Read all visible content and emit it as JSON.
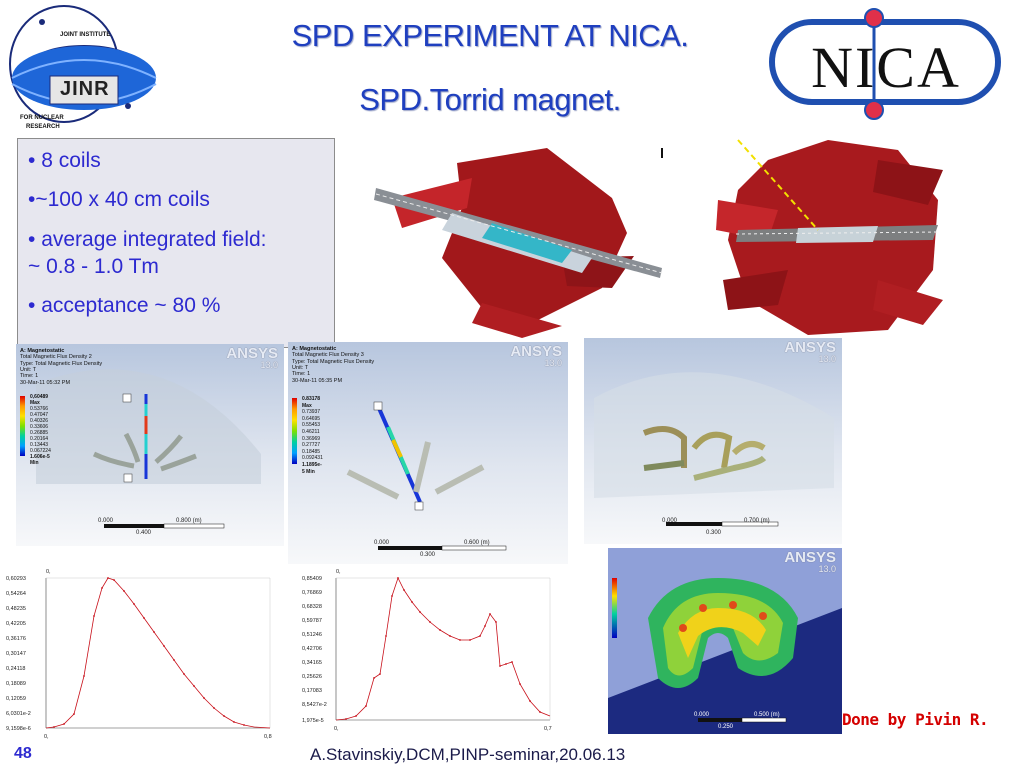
{
  "title_main": "SPD EXPERIMENT AT NICA.",
  "title_sub": "SPD.Torrid magnet.",
  "jinr_logo": {
    "top": "JOINT INSTITUTE",
    "center": "JINR",
    "bottom_line1": "FOR NUCLEAR",
    "bottom_line2": "RESEARCH"
  },
  "nica_logo": "NICA",
  "bullets": [
    "8 coils",
    "~100 x 40 cm coils",
    "average integrated field:",
    "~ 0.8 - 1.0 Tm",
    "acceptance   ~ 80 %"
  ],
  "sim1": {
    "logo": "ANSYS",
    "version": "13.0",
    "text": [
      "A: Magnetostatic",
      "Total Magnetic Flux Density 2",
      "Type: Total Magnetic Flux Density",
      "Unit: T",
      "Time: 1",
      "30-Mar-11 05:32 PM"
    ],
    "legend": [
      "0,60489 Max",
      "0.53766",
      "0.47047",
      "0.40326",
      "0.33606",
      "0.26885",
      "0.20164",
      "0.13443",
      "0.067224",
      "1.606e-5 Min"
    ],
    "scale": [
      "0.000",
      "0.400",
      "0.800 (m)"
    ]
  },
  "sim2": {
    "logo": "ANSYS",
    "version": "13.0",
    "text": [
      "A: Magnetostatic",
      "Total Magnetic Flux Density 3",
      "Type: Total Magnetic Flux Density",
      "Unit: T",
      "Time: 1",
      "30-Mar-11 05:35 PM"
    ],
    "legend": [
      "0.83178 Max",
      "0.73937",
      "0.64695",
      "0.55453",
      "0.46211",
      "0.36969",
      "0.27727",
      "0.18485",
      "0.092431",
      "1.1895e-5 Min"
    ],
    "scale": [
      "0.000",
      "0.300",
      "0.600 (m)"
    ]
  },
  "sim3": {
    "logo": "ANSYS",
    "version": "13.0",
    "scale": [
      "0.000",
      "0.300",
      "0.700 (m)"
    ]
  },
  "sim4": {
    "logo": "ANSYS",
    "version": "13.0",
    "scale": [
      "0.000",
      "0.250",
      "0.500 (m)"
    ]
  },
  "graph1": {
    "y_ticks": [
      "0,60293",
      "0,54264",
      "0,48235",
      "0,42205",
      "0,36176",
      "0,30147",
      "0,24118",
      "0,18089",
      "0,12059",
      "6,0301e-2",
      "9,1598e-6"
    ],
    "x_ticks": [
      "0,",
      "0,8"
    ],
    "y_top_label": "0,"
  },
  "graph2": {
    "y_ticks": [
      "0,85409",
      "0,76869",
      "0,68328",
      "0,59787",
      "0,51246",
      "0,42706",
      "0,34165",
      "0,25626",
      "0,17083",
      "8,5427e-2",
      "1,975e-5"
    ],
    "x_ticks": [
      "0,",
      "0,7"
    ],
    "y_top_label": "0,"
  },
  "done_by": "Done by Pivin R.",
  "footer": "A.Stavinskiy,DCM,PINP-seminar,20.06.13",
  "page_number": "48"
}
